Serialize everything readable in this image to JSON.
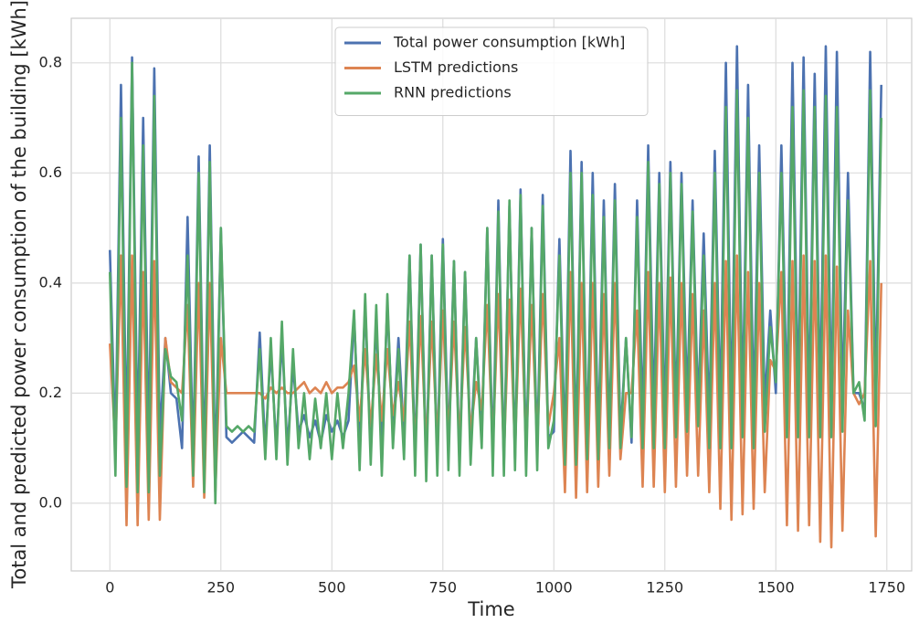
{
  "chart_data": {
    "type": "line",
    "xlabel": "Time",
    "ylabel": "Total and predicted power consumption of the building [kWh]",
    "x": [
      0,
      12.5,
      25,
      37.5,
      50,
      62.5,
      75,
      87.5,
      100,
      112.5,
      125,
      137.5,
      150,
      162.5,
      175,
      187.5,
      200,
      212.5,
      225,
      237.5,
      250,
      262.5,
      275,
      287.5,
      300,
      312.5,
      325,
      337.5,
      350,
      362.5,
      375,
      387.5,
      400,
      412.5,
      425,
      437.5,
      450,
      462.5,
      475,
      487.5,
      500,
      512.5,
      525,
      537.5,
      550,
      562.5,
      575,
      587.5,
      600,
      612.5,
      625,
      637.5,
      650,
      662.5,
      675,
      687.5,
      700,
      712.5,
      725,
      737.5,
      750,
      762.5,
      775,
      787.5,
      800,
      812.5,
      825,
      837.5,
      850,
      862.5,
      875,
      887.5,
      900,
      912.5,
      925,
      937.5,
      950,
      962.5,
      975,
      987.5,
      1000,
      1012.5,
      1025,
      1037.5,
      1050,
      1062.5,
      1075,
      1087.5,
      1100,
      1112.5,
      1125,
      1137.5,
      1150,
      1162.5,
      1175,
      1187.5,
      1200,
      1212.5,
      1225,
      1237.5,
      1250,
      1262.5,
      1275,
      1287.5,
      1300,
      1312.5,
      1325,
      1337.5,
      1350,
      1362.5,
      1375,
      1387.5,
      1400,
      1412.5,
      1425,
      1437.5,
      1450,
      1462.5,
      1475,
      1487.5,
      1500,
      1512.5,
      1525,
      1537.5,
      1550,
      1562.5,
      1575,
      1587.5,
      1600,
      1612.5,
      1625,
      1637.5,
      1650,
      1662.5,
      1675,
      1687.5,
      1700,
      1712.5,
      1725,
      1737.5
    ],
    "series": [
      {
        "name": "Total power consumption [kWh]",
        "color": "#4c72b0",
        "values": [
          0.46,
          0.1,
          0.76,
          0.1,
          0.81,
          0.1,
          0.7,
          0.1,
          0.79,
          0.12,
          0.3,
          0.2,
          0.19,
          0.1,
          0.52,
          0.08,
          0.63,
          0.06,
          0.65,
          0.05,
          0.5,
          0.12,
          0.11,
          0.12,
          0.13,
          0.12,
          0.11,
          0.31,
          0.1,
          0.28,
          0.1,
          0.3,
          0.1,
          0.25,
          0.13,
          0.16,
          0.12,
          0.15,
          0.11,
          0.16,
          0.13,
          0.15,
          0.12,
          0.15,
          0.34,
          0.1,
          0.36,
          0.1,
          0.33,
          0.1,
          0.36,
          0.12,
          0.3,
          0.12,
          0.45,
          0.08,
          0.47,
          0.07,
          0.45,
          0.08,
          0.48,
          0.1,
          0.44,
          0.08,
          0.42,
          0.1,
          0.3,
          0.12,
          0.5,
          0.08,
          0.55,
          0.07,
          0.54,
          0.08,
          0.57,
          0.08,
          0.5,
          0.09,
          0.56,
          0.12,
          0.13,
          0.48,
          0.1,
          0.64,
          0.1,
          0.62,
          0.1,
          0.6,
          0.11,
          0.55,
          0.12,
          0.58,
          0.12,
          0.3,
          0.11,
          0.55,
          0.15,
          0.65,
          0.16,
          0.6,
          0.15,
          0.62,
          0.16,
          0.6,
          0.18,
          0.55,
          0.17,
          0.49,
          0.15,
          0.64,
          0.16,
          0.8,
          0.15,
          0.83,
          0.17,
          0.76,
          0.16,
          0.65,
          0.18,
          0.35,
          0.2,
          0.65,
          0.17,
          0.8,
          0.18,
          0.81,
          0.17,
          0.78,
          0.18,
          0.83,
          0.17,
          0.82,
          0.18,
          0.6,
          0.2,
          0.2,
          0.17,
          0.82,
          0.19,
          0.76
        ]
      },
      {
        "name": "LSTM predictions",
        "color": "#dd8452",
        "values": [
          0.29,
          0.1,
          0.45,
          -0.04,
          0.45,
          -0.04,
          0.42,
          -0.03,
          0.44,
          -0.03,
          0.3,
          0.22,
          0.21,
          0.2,
          0.36,
          0.03,
          0.4,
          0.01,
          0.4,
          0.02,
          0.3,
          0.2,
          0.2,
          0.2,
          0.2,
          0.2,
          0.2,
          0.2,
          0.19,
          0.21,
          0.2,
          0.21,
          0.2,
          0.2,
          0.21,
          0.22,
          0.2,
          0.21,
          0.2,
          0.22,
          0.2,
          0.21,
          0.21,
          0.22,
          0.25,
          0.15,
          0.28,
          0.14,
          0.27,
          0.15,
          0.28,
          0.16,
          0.22,
          0.15,
          0.33,
          0.1,
          0.34,
          0.1,
          0.33,
          0.11,
          0.35,
          0.12,
          0.33,
          0.11,
          0.32,
          0.13,
          0.22,
          0.17,
          0.36,
          0.1,
          0.38,
          0.09,
          0.37,
          0.1,
          0.39,
          0.1,
          0.36,
          0.11,
          0.38,
          0.14,
          0.2,
          0.3,
          0.02,
          0.42,
          0.01,
          0.4,
          0.02,
          0.4,
          0.03,
          0.38,
          0.05,
          0.4,
          0.08,
          0.2,
          0.2,
          0.35,
          0.03,
          0.42,
          0.03,
          0.4,
          0.02,
          0.41,
          0.03,
          0.4,
          0.05,
          0.38,
          0.05,
          0.35,
          0.02,
          0.4,
          -0.01,
          0.44,
          -0.03,
          0.45,
          -0.02,
          0.42,
          -0.01,
          0.4,
          0.02,
          0.26,
          0.24,
          0.42,
          -0.04,
          0.44,
          -0.05,
          0.45,
          -0.04,
          0.44,
          -0.07,
          0.45,
          -0.08,
          0.43,
          -0.05,
          0.35,
          0.2,
          0.18,
          0.2,
          0.44,
          -0.06,
          0.4
        ]
      },
      {
        "name": "RNN predictions",
        "color": "#55a868",
        "values": [
          0.42,
          0.05,
          0.7,
          0.03,
          0.8,
          0.02,
          0.65,
          0.02,
          0.74,
          0.05,
          0.28,
          0.23,
          0.22,
          0.15,
          0.45,
          0.05,
          0.6,
          0.02,
          0.62,
          0,
          0.5,
          0.14,
          0.13,
          0.14,
          0.13,
          0.14,
          0.13,
          0.28,
          0.08,
          0.3,
          0.08,
          0.33,
          0.07,
          0.28,
          0.1,
          0.2,
          0.08,
          0.19,
          0.1,
          0.2,
          0.08,
          0.2,
          0.1,
          0.2,
          0.35,
          0.06,
          0.38,
          0.07,
          0.36,
          0.05,
          0.38,
          0.1,
          0.28,
          0.08,
          0.45,
          0.05,
          0.47,
          0.04,
          0.45,
          0.05,
          0.47,
          0.06,
          0.44,
          0.05,
          0.42,
          0.07,
          0.3,
          0.1,
          0.5,
          0.05,
          0.53,
          0.05,
          0.55,
          0.06,
          0.56,
          0.05,
          0.5,
          0.06,
          0.54,
          0.1,
          0.15,
          0.45,
          0.07,
          0.6,
          0.07,
          0.6,
          0.08,
          0.56,
          0.08,
          0.52,
          0.1,
          0.55,
          0.1,
          0.3,
          0.12,
          0.52,
          0.1,
          0.62,
          0.1,
          0.58,
          0.1,
          0.6,
          0.12,
          0.58,
          0.13,
          0.53,
          0.14,
          0.45,
          0.1,
          0.6,
          0.1,
          0.72,
          0.1,
          0.75,
          0.12,
          0.7,
          0.1,
          0.6,
          0.13,
          0.32,
          0.22,
          0.6,
          0.12,
          0.72,
          0.12,
          0.75,
          0.12,
          0.72,
          0.12,
          0.74,
          0.12,
          0.72,
          0.13,
          0.55,
          0.2,
          0.22,
          0.15,
          0.75,
          0.14,
          0.7
        ]
      }
    ],
    "xlim": [
      -87,
      1806
    ],
    "ylim": [
      -0.123,
      0.881
    ],
    "xticks": [
      0,
      250,
      500,
      750,
      1000,
      1250,
      1500,
      1750
    ],
    "yticks": [
      {
        "value": 0,
        "label": "0.0"
      },
      0.2,
      0.4,
      0.6,
      0.8
    ],
    "grid": true,
    "legend": "upper center"
  }
}
